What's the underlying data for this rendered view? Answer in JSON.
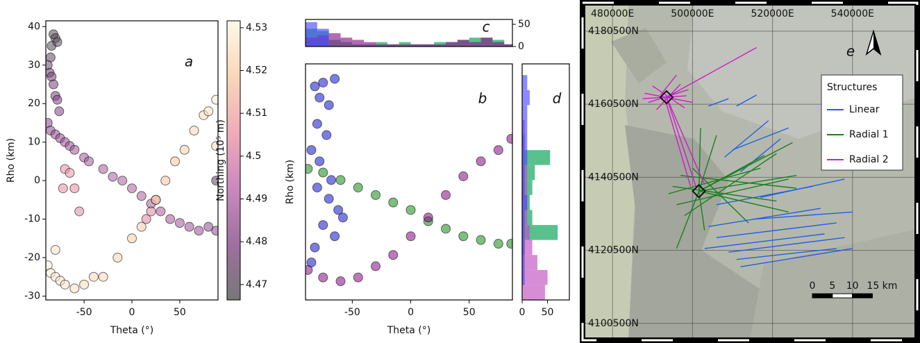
{
  "chart_data": [
    {
      "type": "scatter",
      "annotation": "a",
      "xlabel": "Theta (°)",
      "ylabel": "Rho (km)",
      "xlim": [
        -90,
        90
      ],
      "ylim": [
        -31,
        41.5
      ],
      "xticks": [
        -50,
        0,
        50
      ],
      "yticks": [
        -30,
        -20,
        -10,
        0,
        10,
        20,
        30,
        40
      ],
      "series": [
        {
          "x": [
            -82,
            -80,
            -84,
            -78,
            -85,
            -88,
            -86,
            -84,
            -82,
            -80,
            -78,
            -76,
            -88,
            -85,
            -80,
            -75,
            -70,
            -65,
            -60,
            -50,
            -45,
            -30,
            -20,
            -10,
            0,
            10,
            20,
            30,
            40,
            50,
            60,
            70,
            80,
            88,
            88,
            -70,
            -65,
            -72,
            -60,
            -55,
            15,
            20,
            25,
            -88,
            -85,
            -80,
            -75,
            -70,
            -60,
            -50,
            -40,
            -30,
            -15,
            0,
            10,
            25,
            35,
            45,
            55,
            65,
            75,
            80,
            88,
            88,
            -80
          ],
          "y": [
            38,
            37,
            35,
            36,
            32,
            30,
            28,
            27,
            25,
            22,
            21,
            18,
            15,
            13,
            12,
            11,
            10,
            9,
            8,
            6,
            5,
            3,
            1,
            0,
            -2,
            -4,
            -6,
            -8,
            -10,
            -11,
            -12,
            -13,
            -12,
            -13,
            0,
            3,
            2,
            -2,
            -2,
            -8,
            -10,
            -8,
            -5,
            -22,
            -24,
            -25,
            -26,
            -27,
            -28,
            -27,
            -25,
            -25,
            -20,
            -15,
            -12,
            -5,
            0,
            5,
            8,
            13,
            17,
            18,
            21,
            9,
            -18
          ],
          "c": [
            4.468,
            4.468,
            4.469,
            4.47,
            4.472,
            4.475,
            4.476,
            4.477,
            4.478,
            4.479,
            4.48,
            4.48,
            4.482,
            4.483,
            4.484,
            4.485,
            4.486,
            4.486,
            4.487,
            4.488,
            4.488,
            4.489,
            4.49,
            4.49,
            4.49,
            4.491,
            4.49,
            4.489,
            4.488,
            4.487,
            4.486,
            4.485,
            4.484,
            4.483,
            4.47,
            4.505,
            4.506,
            4.505,
            4.504,
            4.503,
            4.502,
            4.503,
            4.504,
            4.53,
            4.529,
            4.528,
            4.527,
            4.526,
            4.525,
            4.524,
            4.523,
            4.522,
            4.521,
            4.52,
            4.519,
            4.518,
            4.517,
            4.518,
            4.52,
            4.522,
            4.524,
            4.526,
            4.528,
            4.525,
            4.527
          ]
        }
      ],
      "colorbar": {
        "label": "Northing (10⁵ m)",
        "lim": [
          4.4664,
          4.5316
        ],
        "ticks": [
          4.47,
          4.48,
          4.49,
          4.5,
          4.51,
          4.52,
          4.53
        ],
        "colormap": [
          "#4a4a4a",
          "#7e3f80",
          "#b862a8",
          "#ea8fa2",
          "#f6c9a2",
          "#fff6de"
        ]
      }
    },
    {
      "type": "scatter",
      "annotation": "b",
      "xlabel": "Theta (°)",
      "ylabel": "Rho (km)",
      "xlim": [
        -90,
        87
      ],
      "ylim": [
        -32,
        31
      ],
      "xticks": [
        -50,
        0,
        50
      ],
      "series": [
        {
          "color": "#1010d0",
          "x": [
            -82,
            -78,
            -75,
            -70,
            -80,
            -72,
            -85,
            -78,
            -65,
            -80,
            -70,
            -62,
            -75,
            -65,
            -82,
            -58,
            -68,
            -85
          ],
          "y": [
            25,
            22,
            26,
            20,
            15,
            12,
            8,
            5,
            27,
            -2,
            -5,
            -8,
            -12,
            -15,
            -18,
            -10,
            0,
            -22
          ]
        },
        {
          "color": "#138a13",
          "x": [
            -88,
            -75,
            -60,
            -45,
            -30,
            -15,
            0,
            15,
            30,
            45,
            60,
            75,
            86
          ],
          "y": [
            3,
            2,
            0,
            -2,
            -4,
            -6,
            -8,
            -11,
            -13,
            -15,
            -16,
            -17,
            -17
          ]
        },
        {
          "color": "#850a85",
          "x": [
            -88,
            -75,
            -60,
            -45,
            -30,
            -15,
            0,
            15,
            30,
            45,
            60,
            75,
            86
          ],
          "y": [
            -24,
            -26,
            -27,
            -26,
            -23,
            -20,
            -15,
            -10,
            -4,
            1,
            5,
            8,
            11
          ]
        }
      ]
    },
    {
      "type": "histogram",
      "annotation": "c",
      "ytick_side": "right",
      "xlim": [
        -90,
        87
      ],
      "ylim": [
        0,
        61
      ],
      "yticks": [
        0,
        50
      ],
      "bins": [
        -90,
        -80,
        -70,
        -60,
        -50,
        -40,
        -30,
        -20,
        -10,
        0,
        10,
        20,
        30,
        40,
        50,
        60,
        70,
        80,
        90
      ],
      "series": [
        {
          "color": "#00a050",
          "values": [
            40,
            35,
            15,
            10,
            5,
            5,
            10,
            5,
            10,
            5,
            5,
            10,
            10,
            15,
            20,
            20,
            15,
            5
          ]
        },
        {
          "color": "#8a1a8a",
          "values": [
            20,
            25,
            30,
            20,
            15,
            10,
            5,
            5,
            5,
            5,
            5,
            5,
            10,
            15,
            10,
            20,
            10,
            5
          ]
        },
        {
          "color": "#4b4bff",
          "values": [
            55,
            40,
            0,
            0,
            0,
            0,
            0,
            0,
            0,
            0,
            0,
            0,
            0,
            0,
            0,
            0,
            0,
            0
          ]
        }
      ]
    },
    {
      "type": "histogram",
      "annotation": "d",
      "orientation": "horizontal",
      "xlim": [
        0,
        93
      ],
      "ylim": [
        -32,
        31
      ],
      "xticks": [
        0,
        50
      ],
      "bins": [
        -32,
        -28,
        -24,
        -20,
        -16,
        -12,
        -8,
        -4,
        0,
        4,
        8,
        12,
        16,
        20,
        24,
        28
      ],
      "series": [
        {
          "color": "#00a050",
          "values": [
            0,
            0,
            0,
            5,
            70,
            20,
            15,
            20,
            25,
            55,
            5,
            0,
            0,
            0,
            0
          ]
        },
        {
          "color": "#c050c0",
          "values": [
            45,
            50,
            30,
            20,
            15,
            10,
            10,
            10,
            10,
            5,
            5,
            5,
            0,
            0,
            0
          ]
        },
        {
          "color": "#4b4bff",
          "values": [
            0,
            5,
            5,
            5,
            5,
            5,
            10,
            5,
            5,
            10,
            10,
            10,
            10,
            15,
            10
          ]
        }
      ]
    },
    {
      "type": "map",
      "annotation": "e",
      "grid": true,
      "xlim": [
        473200,
        556000
      ],
      "ylim": [
        4095900,
        4187500
      ],
      "xticks": [
        {
          "value": 480000,
          "label": "480000E"
        },
        {
          "value": 500000,
          "label": "500000E"
        },
        {
          "value": 520000,
          "label": "520000E"
        },
        {
          "value": 540000,
          "label": "540000E"
        }
      ],
      "yticks": [
        {
          "value": 4180500,
          "label": "4180500N"
        },
        {
          "value": 4160500,
          "label": "4160500N"
        },
        {
          "value": 4140500,
          "label": "4140500N"
        },
        {
          "value": 4120500,
          "label": "4120500N"
        },
        {
          "value": 4100500,
          "label": "4100500N"
        }
      ],
      "legend": {
        "title": "Structures",
        "loc": "upper right"
      },
      "series": [
        {
          "name": "Linear",
          "color": "#1f5fe6",
          "segments": [
            [
              506000,
              4133000,
              530000,
              4138000
            ],
            [
              504000,
              4127000,
              532000,
              4132000
            ],
            [
              506000,
              4124000,
              536000,
              4128000
            ],
            [
              503000,
              4121000,
              533000,
              4125000
            ],
            [
              509000,
              4120000,
              538000,
              4124000
            ],
            [
              511000,
              4118000,
              536000,
              4121000
            ],
            [
              512000,
              4116000,
              540000,
              4121000
            ],
            [
              515000,
              4129000,
              540000,
              4131000
            ],
            [
              517000,
              4135000,
              538000,
              4140000
            ],
            [
              512000,
              4142000,
              522000,
              4151000
            ],
            [
              510000,
              4148000,
              524000,
              4154000
            ],
            [
              508000,
              4146000,
              519000,
              4156000
            ],
            [
              504000,
              4160000,
              509000,
              4162000
            ],
            [
              511000,
              4160000,
              516000,
              4163000
            ]
          ]
        },
        {
          "name": "Radial 1",
          "color": "#18801e",
          "segments": [
            [
              501600,
              4136700,
              525000,
              4150000
            ],
            [
              501600,
              4136700,
              526000,
              4141000
            ],
            [
              501600,
              4136700,
              524000,
              4131000
            ],
            [
              501600,
              4136700,
              518000,
              4146500
            ],
            [
              501600,
              4136700,
              502000,
              4154000
            ],
            [
              501600,
              4136700,
              506000,
              4152000
            ],
            [
              501600,
              4136700,
              496000,
              4121000
            ],
            [
              501600,
              4136700,
              503000,
              4126000
            ],
            [
              495000,
              4138000,
              521000,
              4134000
            ],
            [
              496000,
              4133000,
              524000,
              4140000
            ],
            [
              497000,
              4141000,
              526000,
              4137500
            ],
            [
              494000,
              4136000,
              517000,
              4143000
            ],
            [
              498000,
              4130000,
              521000,
              4147000
            ],
            [
              500000,
              4143000,
              514000,
              4128000
            ]
          ]
        },
        {
          "name": "Radial 2",
          "color": "#c81ec8",
          "segments": [
            [
              488000,
              4163500,
              500000,
              4161000
            ],
            [
              489000,
              4161000,
              499000,
              4164500
            ],
            [
              490000,
              4165500,
              498000,
              4159500
            ],
            [
              491000,
              4159000,
              497000,
              4166000
            ],
            [
              493500,
              4162400,
              516000,
              4176000
            ],
            [
              493500,
              4162400,
              501000,
              4137500
            ],
            [
              493000,
              4162400,
              499500,
              4138000
            ],
            [
              493500,
              4162400,
              503000,
              4138500
            ],
            [
              492000,
              4163000,
              496000,
              4168500
            ],
            [
              487500,
              4162000,
              498500,
              4162800
            ]
          ]
        }
      ],
      "markers": {
        "x": [
          493500,
          501600
        ],
        "y": [
          4162400,
          4136700
        ]
      },
      "scalebar": {
        "ticks": [
          0,
          {
            "value": 5000,
            "label": "5"
          },
          {
            "value": 10000,
            "label": "10"
          },
          {
            "value": 15000,
            "label": "15 km"
          }
        ]
      }
    }
  ]
}
